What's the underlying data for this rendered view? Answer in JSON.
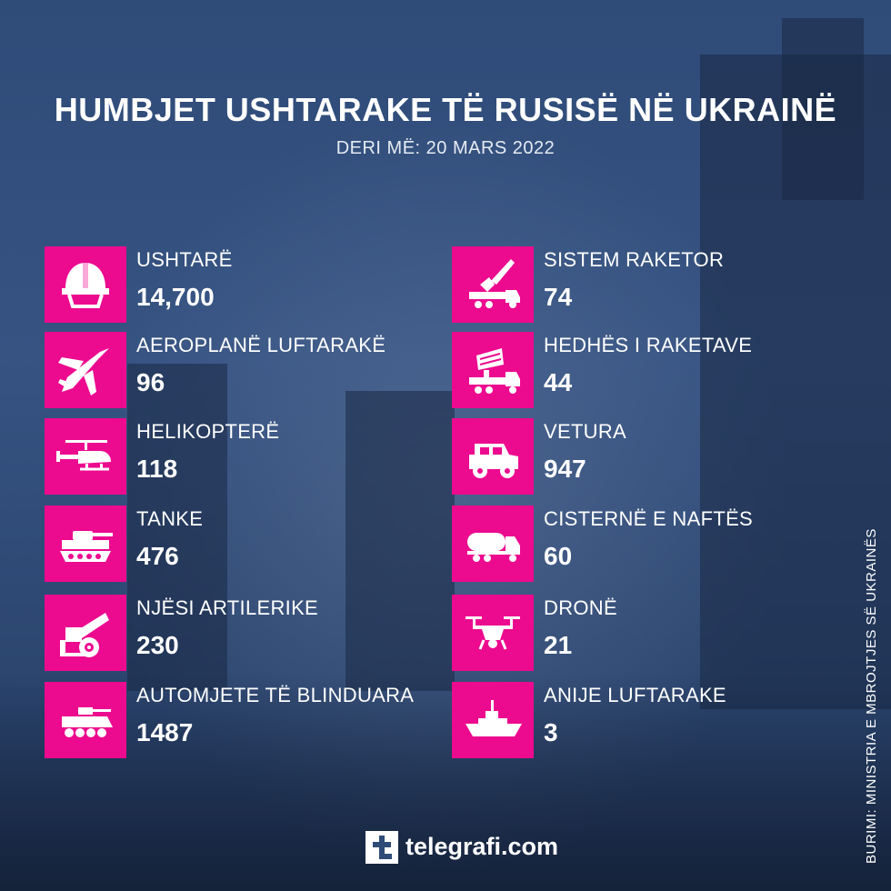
{
  "title": "HUMBJET USHTARAKE TË RUSISË NË UKRAINË",
  "subtitle": "DERI MË: 20 MARS 2022",
  "colors": {
    "accent": "#ec0a8f",
    "background": "#2f4b78",
    "text": "#ffffff"
  },
  "left_items": [
    {
      "label": "USHTARË",
      "value": "14,700",
      "icon": "helmet-icon"
    },
    {
      "label": "AEROPLANË LUFTARAKË",
      "value": "96",
      "icon": "fighter-jet-icon"
    },
    {
      "label": "HELIKOPTERË",
      "value": "118",
      "icon": "helicopter-icon"
    },
    {
      "label": "TANKE",
      "value": "476",
      "icon": "tank-icon"
    },
    {
      "label": "NJËSI ARTILERIKE",
      "value": "230",
      "icon": "artillery-icon"
    },
    {
      "label": "AUTOMJETE TË BLINDUARA",
      "value": "1487",
      "icon": "armored-vehicle-icon"
    }
  ],
  "right_items": [
    {
      "label": "SISTEM RAKETOR",
      "value": "74",
      "icon": "missile-system-icon"
    },
    {
      "label": "HEDHËS I RAKETAVE",
      "value": "44",
      "icon": "rocket-launcher-icon"
    },
    {
      "label": "VETURA",
      "value": "947",
      "icon": "vehicle-icon"
    },
    {
      "label": "CISTERNË E NAFTËS",
      "value": "60",
      "icon": "fuel-tanker-icon"
    },
    {
      "label": "DRONË",
      "value": "21",
      "icon": "drone-icon"
    },
    {
      "label": "ANIJE LUFTARAKE",
      "value": "3",
      "icon": "warship-icon"
    }
  ],
  "source": "BURIMI: MINISTRIA E MBROJTJES SË UKRAINËS",
  "logo": {
    "text": "telegrafi.com",
    "icon": "telegrafi-logo-icon"
  }
}
